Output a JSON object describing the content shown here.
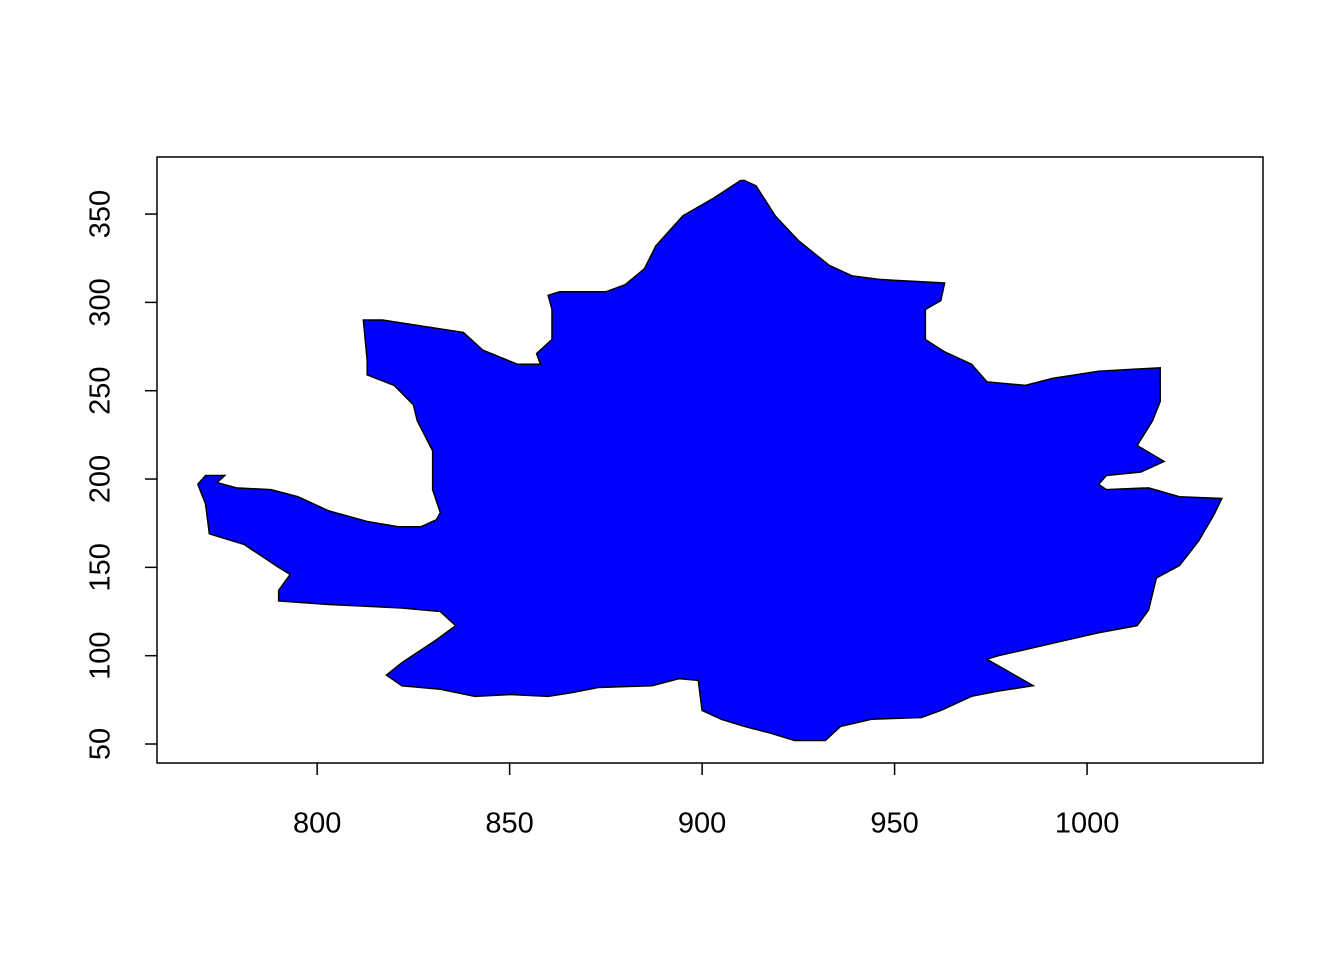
{
  "chart_data": {
    "type": "polygon",
    "color": "#0000ff",
    "x": [
      911,
      914,
      919,
      925,
      933,
      939,
      946,
      963,
      962,
      958,
      958,
      963,
      970,
      974,
      984,
      991,
      1003,
      1019,
      1019,
      1017,
      1013,
      1020,
      1014,
      1005,
      1003,
      1005,
      1016,
      1024,
      1035,
      1033,
      1029,
      1024,
      1018,
      1016,
      1013,
      1003,
      993,
      977,
      974,
      986,
      977,
      970,
      962,
      957,
      944,
      936,
      932,
      924,
      918,
      911,
      905,
      900,
      899,
      894,
      887,
      873,
      866,
      860,
      850,
      841,
      832,
      822,
      818,
      822,
      831,
      836,
      832,
      822,
      803,
      790,
      790,
      793,
      790,
      781,
      772,
      771,
      769,
      771,
      776,
      774,
      779,
      788,
      795,
      803,
      813,
      821,
      827,
      831,
      832,
      830,
      830,
      826,
      825,
      820,
      813,
      813,
      812,
      817,
      826,
      838,
      843,
      852,
      858,
      857,
      861,
      861,
      860,
      863,
      875,
      880,
      885,
      888,
      895,
      903,
      910
    ],
    "y": [
      369,
      366,
      349,
      335,
      321,
      315,
      313,
      311,
      301,
      296,
      279,
      272,
      265,
      255,
      253,
      257,
      261,
      263,
      244,
      233,
      219,
      210,
      204,
      202,
      197,
      194,
      195,
      190,
      189,
      180,
      165,
      151,
      144,
      126,
      117,
      113,
      108,
      100,
      98,
      83,
      80,
      77,
      69,
      65,
      64,
      60,
      52,
      52,
      56,
      60,
      64,
      69,
      86,
      87,
      83,
      82,
      79,
      77,
      78,
      77,
      81,
      83,
      89,
      96,
      109,
      117,
      125,
      127,
      129,
      131,
      137,
      146,
      150,
      163,
      169,
      186,
      197,
      202,
      202,
      198,
      195,
      194,
      190,
      182,
      176,
      173,
      173,
      177,
      181,
      194,
      216,
      233,
      242,
      253,
      259,
      267,
      290,
      290,
      287,
      283,
      273,
      265,
      265,
      271,
      279,
      296,
      304,
      306,
      306,
      310,
      319,
      332,
      349,
      359,
      369
    ],
    "xlim": [
      758.4,
      1045.7
    ],
    "ylim": [
      39.25,
      382.3
    ],
    "xticks": [
      800,
      850,
      900,
      950,
      1000
    ],
    "yticks": [
      50,
      100,
      150,
      200,
      250,
      300,
      350
    ]
  }
}
